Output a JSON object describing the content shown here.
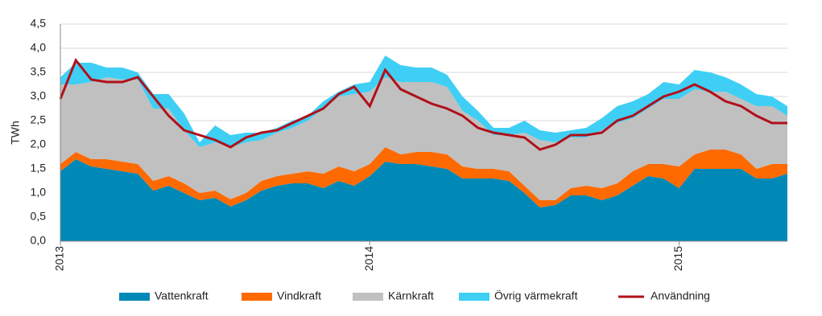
{
  "chart_data": {
    "type": "area",
    "stacked": true,
    "y_label": "TWh",
    "x": [
      2013,
      2013.05,
      2013.1,
      2013.15,
      2013.2,
      2013.25,
      2013.3,
      2013.35,
      2013.4,
      2013.45,
      2013.5,
      2013.55,
      2013.6,
      2013.65,
      2013.7,
      2013.75,
      2013.8,
      2013.85,
      2013.9,
      2013.95,
      2014,
      2014.05,
      2014.1,
      2014.15,
      2014.2,
      2014.25,
      2014.3,
      2014.35,
      2014.4,
      2014.45,
      2014.5,
      2014.55,
      2014.6,
      2014.65,
      2014.7,
      2014.75,
      2014.8,
      2014.85,
      2014.9,
      2014.95,
      2015,
      2015.05,
      2015.1,
      2015.15,
      2015.2,
      2015.25,
      2015.3,
      2015.35
    ],
    "xlim": [
      2013,
      2015.35
    ],
    "xticks": [
      2013,
      2014,
      2015
    ],
    "ylim": [
      0,
      4.5
    ],
    "yticks": [
      {
        "value": 0,
        "label": "0,0"
      },
      {
        "value": 0.5,
        "label": "0,5"
      },
      {
        "value": 1,
        "label": "1,0"
      },
      {
        "value": 1.5,
        "label": "1,5"
      },
      {
        "value": 2,
        "label": "2,0"
      },
      {
        "value": 2.5,
        "label": "2,5"
      },
      {
        "value": 3,
        "label": "3,0"
      },
      {
        "value": 3.5,
        "label": "3,5"
      },
      {
        "value": 4,
        "label": "4,0"
      },
      {
        "value": 4.5,
        "label": "4,5"
      }
    ],
    "grid": true,
    "legend": "bottom",
    "series": [
      {
        "name": "Vattenkraft",
        "color": "#0089b6",
        "values": [
          1.45,
          1.7,
          1.55,
          1.5,
          1.45,
          1.4,
          1.05,
          1.15,
          1.0,
          0.85,
          0.9,
          0.72,
          0.85,
          1.05,
          1.15,
          1.2,
          1.2,
          1.1,
          1.25,
          1.15,
          1.35,
          1.65,
          1.6,
          1.6,
          1.55,
          1.5,
          1.3,
          1.3,
          1.3,
          1.25,
          1.0,
          0.7,
          0.75,
          0.95,
          0.95,
          0.85,
          0.95,
          1.15,
          1.35,
          1.3,
          1.1,
          1.5,
          1.5,
          1.5,
          1.5,
          1.3,
          1.3,
          1.4
        ]
      },
      {
        "name": "Vindkraft",
        "color": "#ff6a00",
        "values": [
          0.15,
          0.15,
          0.15,
          0.2,
          0.2,
          0.2,
          0.2,
          0.2,
          0.2,
          0.15,
          0.15,
          0.15,
          0.15,
          0.2,
          0.2,
          0.2,
          0.25,
          0.3,
          0.3,
          0.3,
          0.25,
          0.3,
          0.2,
          0.25,
          0.3,
          0.3,
          0.25,
          0.2,
          0.2,
          0.2,
          0.15,
          0.15,
          0.1,
          0.15,
          0.2,
          0.25,
          0.25,
          0.3,
          0.25,
          0.3,
          0.45,
          0.3,
          0.4,
          0.4,
          0.3,
          0.2,
          0.3,
          0.2
        ]
      },
      {
        "name": "Kärnkraft",
        "color": "#c0c0c0",
        "values": [
          1.65,
          1.4,
          1.6,
          1.7,
          1.7,
          1.75,
          1.5,
          1.4,
          1.1,
          0.95,
          1.0,
          1.08,
          1.05,
          0.85,
          0.9,
          0.95,
          1.05,
          1.35,
          1.45,
          1.6,
          1.5,
          1.45,
          1.5,
          1.45,
          1.45,
          1.4,
          1.15,
          1.0,
          0.7,
          0.75,
          1.1,
          1.25,
          1.2,
          1.05,
          1.0,
          1.2,
          1.25,
          1.1,
          1.15,
          1.35,
          1.4,
          1.35,
          1.2,
          1.2,
          1.15,
          1.3,
          1.2,
          1.0
        ]
      },
      {
        "name": "Övrig värmekraft",
        "color": "#3fcff5",
        "values": [
          0.15,
          0.45,
          0.4,
          0.2,
          0.25,
          0.15,
          0.3,
          0.3,
          0.35,
          0.1,
          0.35,
          0.25,
          0.2,
          0.15,
          0.1,
          0.15,
          0.1,
          0.15,
          0.1,
          0.2,
          0.2,
          0.45,
          0.35,
          0.3,
          0.3,
          0.25,
          0.3,
          0.2,
          0.15,
          0.15,
          0.25,
          0.2,
          0.2,
          0.15,
          0.2,
          0.25,
          0.35,
          0.35,
          0.3,
          0.35,
          0.3,
          0.4,
          0.4,
          0.3,
          0.3,
          0.25,
          0.2,
          0.2
        ]
      },
      {
        "name": "Användning",
        "type": "line",
        "color": "#b0101a",
        "values": [
          2.95,
          3.75,
          3.35,
          3.3,
          3.3,
          3.4,
          3.0,
          2.6,
          2.3,
          2.2,
          2.1,
          1.95,
          2.15,
          2.25,
          2.3,
          2.45,
          2.6,
          2.75,
          3.05,
          3.2,
          2.8,
          3.55,
          3.15,
          3.0,
          2.85,
          2.75,
          2.6,
          2.35,
          2.25,
          2.2,
          2.15,
          1.9,
          2.0,
          2.2,
          2.2,
          2.25,
          2.5,
          2.6,
          2.8,
          3.0,
          3.1,
          3.25,
          3.1,
          2.9,
          2.8,
          2.6,
          2.45,
          2.45
        ]
      }
    ]
  }
}
